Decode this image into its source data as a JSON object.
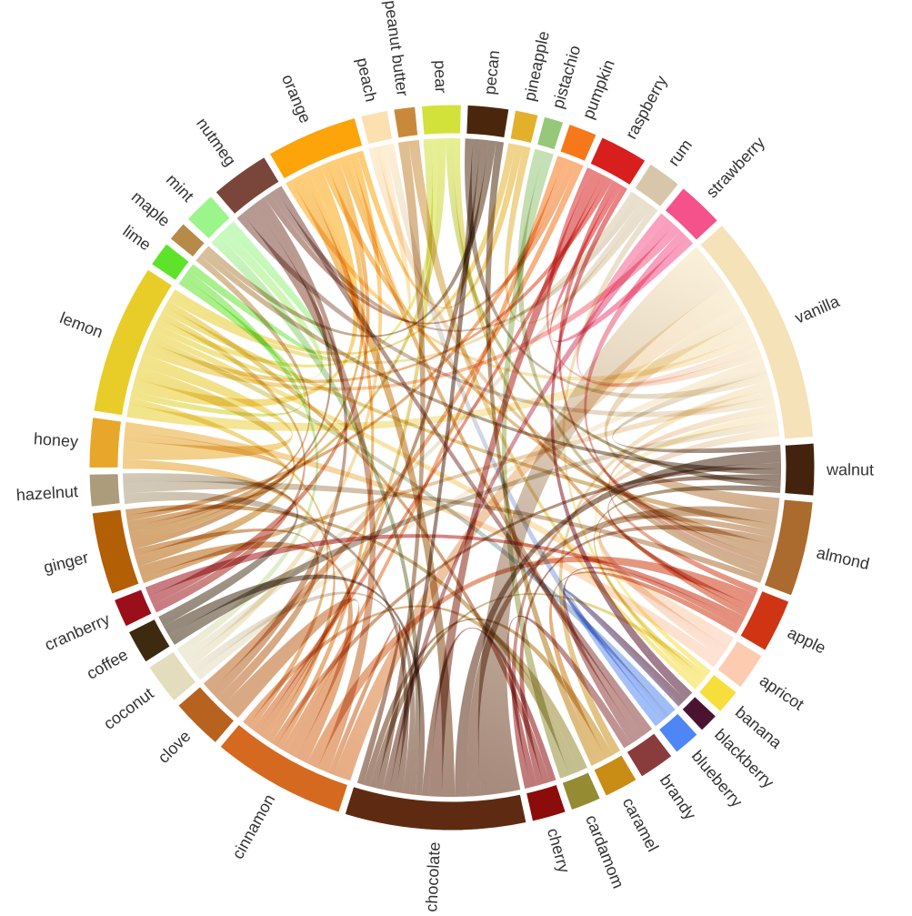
{
  "diagram": {
    "type": "chord",
    "ribbon_opacity": 0.55,
    "groups": [
      {
        "name": "chocolate",
        "value": 10.2,
        "color": "#5e2b12"
      },
      {
        "name": "cinnamon",
        "value": 7.6,
        "color": "#d4691f"
      },
      {
        "name": "clove",
        "value": 3.0,
        "color": "#b8621f"
      },
      {
        "name": "coconut",
        "value": 2.4,
        "color": "#e3dcbd"
      },
      {
        "name": "coffee",
        "value": 2.0,
        "color": "#3e2a10"
      },
      {
        "name": "cranberry",
        "value": 1.7,
        "color": "#9b0f1a"
      },
      {
        "name": "ginger",
        "value": 4.7,
        "color": "#b35f06"
      },
      {
        "name": "hazelnut",
        "value": 1.9,
        "color": "#ad9c7b"
      },
      {
        "name": "honey",
        "value": 2.9,
        "color": "#e8a72a"
      },
      {
        "name": "lemon",
        "value": 8.5,
        "color": "#e8cd28"
      },
      {
        "name": "lime",
        "value": 1.5,
        "color": "#5fe32a"
      },
      {
        "name": "maple",
        "value": 1.2,
        "color": "#b88a4a"
      },
      {
        "name": "mint",
        "value": 1.9,
        "color": "#9bf58a"
      },
      {
        "name": "nutmeg",
        "value": 3.4,
        "color": "#7a453a"
      },
      {
        "name": "orange",
        "value": 5.2,
        "color": "#fca40a"
      },
      {
        "name": "peach",
        "value": 1.6,
        "color": "#fde0b0"
      },
      {
        "name": "peanut butter",
        "value": 1.3,
        "color": "#c88a3a"
      },
      {
        "name": "pear",
        "value": 2.3,
        "color": "#d2e23a"
      },
      {
        "name": "pecan",
        "value": 2.4,
        "color": "#4a260c"
      },
      {
        "name": "pineapple",
        "value": 1.4,
        "color": "#e3b02b"
      },
      {
        "name": "pistachio",
        "value": 1.2,
        "color": "#96c87a"
      },
      {
        "name": "pumpkin",
        "value": 1.7,
        "color": "#f7781b"
      },
      {
        "name": "raspberry",
        "value": 2.8,
        "color": "#d91e1e"
      },
      {
        "name": "rum",
        "value": 2.0,
        "color": "#d7c6a9"
      },
      {
        "name": "strawberry",
        "value": 2.7,
        "color": "#f5518a"
      },
      {
        "name": "vanilla",
        "value": 13.0,
        "color": "#f5e2b9"
      },
      {
        "name": "walnut",
        "value": 3.0,
        "color": "#44230e"
      },
      {
        "name": "almond",
        "value": 5.4,
        "color": "#ab6b2e"
      },
      {
        "name": "apple",
        "value": 3.1,
        "color": "#cf3512"
      },
      {
        "name": "apricot",
        "value": 2.2,
        "color": "#fdcbb0"
      },
      {
        "name": "banana",
        "value": 1.5,
        "color": "#f7de3a"
      },
      {
        "name": "blackberry",
        "value": 1.2,
        "color": "#4a1430"
      },
      {
        "name": "blueberry",
        "value": 1.6,
        "color": "#4f86f5"
      },
      {
        "name": "brandy",
        "value": 2.1,
        "color": "#8a3c3c"
      },
      {
        "name": "caramel",
        "value": 2.0,
        "color": "#c98c14"
      },
      {
        "name": "cardamom",
        "value": 1.8,
        "color": "#948b33"
      },
      {
        "name": "cherry",
        "value": 2.0,
        "color": "#8c0b0b"
      }
    ],
    "links": [
      [
        "vanilla",
        "chocolate",
        6
      ],
      [
        "vanilla",
        "cinnamon",
        3
      ],
      [
        "vanilla",
        "almond",
        2
      ],
      [
        "vanilla",
        "lemon",
        2
      ],
      [
        "vanilla",
        "orange",
        1
      ],
      [
        "vanilla",
        "strawberry",
        1
      ],
      [
        "vanilla",
        "raspberry",
        1
      ],
      [
        "vanilla",
        "coconut",
        1
      ],
      [
        "vanilla",
        "walnut",
        1
      ],
      [
        "vanilla",
        "pecan",
        1
      ],
      [
        "vanilla",
        "caramel",
        1
      ],
      [
        "vanilla",
        "ginger",
        1
      ],
      [
        "vanilla",
        "nutmeg",
        1
      ],
      [
        "vanilla",
        "apple",
        1
      ],
      [
        "vanilla",
        "banana",
        1
      ],
      [
        "vanilla",
        "coffee",
        1
      ],
      [
        "chocolate",
        "almond",
        2
      ],
      [
        "chocolate",
        "walnut",
        2
      ],
      [
        "chocolate",
        "orange",
        2
      ],
      [
        "chocolate",
        "raspberry",
        2
      ],
      [
        "chocolate",
        "cherry",
        1
      ],
      [
        "chocolate",
        "coffee",
        1
      ],
      [
        "chocolate",
        "mint",
        1
      ],
      [
        "chocolate",
        "coconut",
        1
      ],
      [
        "chocolate",
        "hazelnut",
        1
      ],
      [
        "chocolate",
        "pecan",
        1
      ],
      [
        "chocolate",
        "strawberry",
        1
      ],
      [
        "chocolate",
        "peanut butter",
        1
      ],
      [
        "chocolate",
        "banana",
        1
      ],
      [
        "chocolate",
        "caramel",
        1
      ],
      [
        "chocolate",
        "cinnamon",
        1
      ],
      [
        "cinnamon",
        "nutmeg",
        2
      ],
      [
        "cinnamon",
        "apple",
        2
      ],
      [
        "cinnamon",
        "ginger",
        2
      ],
      [
        "cinnamon",
        "clove",
        2
      ],
      [
        "cinnamon",
        "pumpkin",
        1
      ],
      [
        "cinnamon",
        "orange",
        1
      ],
      [
        "cinnamon",
        "walnut",
        1
      ],
      [
        "cinnamon",
        "honey",
        1
      ],
      [
        "cinnamon",
        "pear",
        1
      ],
      [
        "cinnamon",
        "pecan",
        1
      ],
      [
        "cinnamon",
        "raspberry",
        1
      ],
      [
        "cinnamon",
        "lemon",
        1
      ],
      [
        "cinnamon",
        "cardamom",
        1
      ],
      [
        "lemon",
        "lime",
        1
      ],
      [
        "lemon",
        "orange",
        2
      ],
      [
        "lemon",
        "ginger",
        2
      ],
      [
        "lemon",
        "honey",
        2
      ],
      [
        "lemon",
        "strawberry",
        1
      ],
      [
        "lemon",
        "raspberry",
        1
      ],
      [
        "lemon",
        "blueberry",
        1
      ],
      [
        "lemon",
        "apricot",
        1
      ],
      [
        "lemon",
        "mint",
        1
      ],
      [
        "lemon",
        "pear",
        1
      ],
      [
        "lemon",
        "cranberry",
        1
      ],
      [
        "lemon",
        "almond",
        1
      ],
      [
        "lemon",
        "cherry",
        1
      ],
      [
        "lemon",
        "rum",
        1
      ],
      [
        "lemon",
        "pineapple",
        1
      ],
      [
        "almond",
        "apricot",
        1
      ],
      [
        "almond",
        "cherry",
        1
      ],
      [
        "almond",
        "orange",
        1
      ],
      [
        "almond",
        "peach",
        1
      ],
      [
        "almond",
        "raspberry",
        1
      ],
      [
        "almond",
        "strawberry",
        1
      ],
      [
        "almond",
        "pistachio",
        1
      ],
      [
        "almond",
        "hazelnut",
        1
      ],
      [
        "ginger",
        "clove",
        1
      ],
      [
        "ginger",
        "nutmeg",
        1
      ],
      [
        "ginger",
        "orange",
        1
      ],
      [
        "ginger",
        "pear",
        1
      ],
      [
        "ginger",
        "maple",
        1
      ],
      [
        "ginger",
        "honey",
        1
      ],
      [
        "ginger",
        "pumpkin",
        1
      ],
      [
        "ginger",
        "cardamom",
        1
      ],
      [
        "nutmeg",
        "clove",
        1
      ],
      [
        "nutmeg",
        "pumpkin",
        1
      ],
      [
        "nutmeg",
        "rum",
        1
      ],
      [
        "nutmeg",
        "brandy",
        1
      ],
      [
        "orange",
        "cranberry",
        1
      ],
      [
        "orange",
        "brandy",
        1
      ],
      [
        "orange",
        "peach",
        1
      ],
      [
        "orange",
        "coconut",
        1
      ],
      [
        "orange",
        "pineapple",
        1
      ],
      [
        "walnut",
        "maple",
        1
      ],
      [
        "walnut",
        "apple",
        1
      ],
      [
        "walnut",
        "pear",
        1
      ],
      [
        "walnut",
        "banana",
        1
      ],
      [
        "apple",
        "pear",
        1
      ],
      [
        "apple",
        "cranberry",
        1
      ],
      [
        "apple",
        "brandy",
        1
      ],
      [
        "apple",
        "caramel",
        1
      ],
      [
        "rum",
        "coconut",
        1
      ],
      [
        "rum",
        "pineapple",
        1
      ],
      [
        "rum",
        "banana",
        1
      ],
      [
        "strawberry",
        "raspberry",
        1
      ],
      [
        "blackberry",
        "raspberry",
        1
      ],
      [
        "blackberry",
        "blueberry",
        1
      ],
      [
        "blueberry",
        "peach",
        1
      ],
      [
        "pecan",
        "maple",
        1
      ],
      [
        "pecan",
        "caramel",
        1
      ],
      [
        "coconut",
        "lime",
        1
      ],
      [
        "coffee",
        "hazelnut",
        1
      ],
      [
        "brandy",
        "cherry",
        1
      ],
      [
        "cardamom",
        "pistachio",
        1
      ],
      [
        "mint",
        "lime",
        1
      ],
      [
        "honey",
        "apricot",
        1
      ],
      [
        "pumpkin",
        "clove",
        1
      ],
      [
        "cherry",
        "vanilla",
        1
      ],
      [
        "peanut butter",
        "banana",
        1
      ]
    ]
  }
}
